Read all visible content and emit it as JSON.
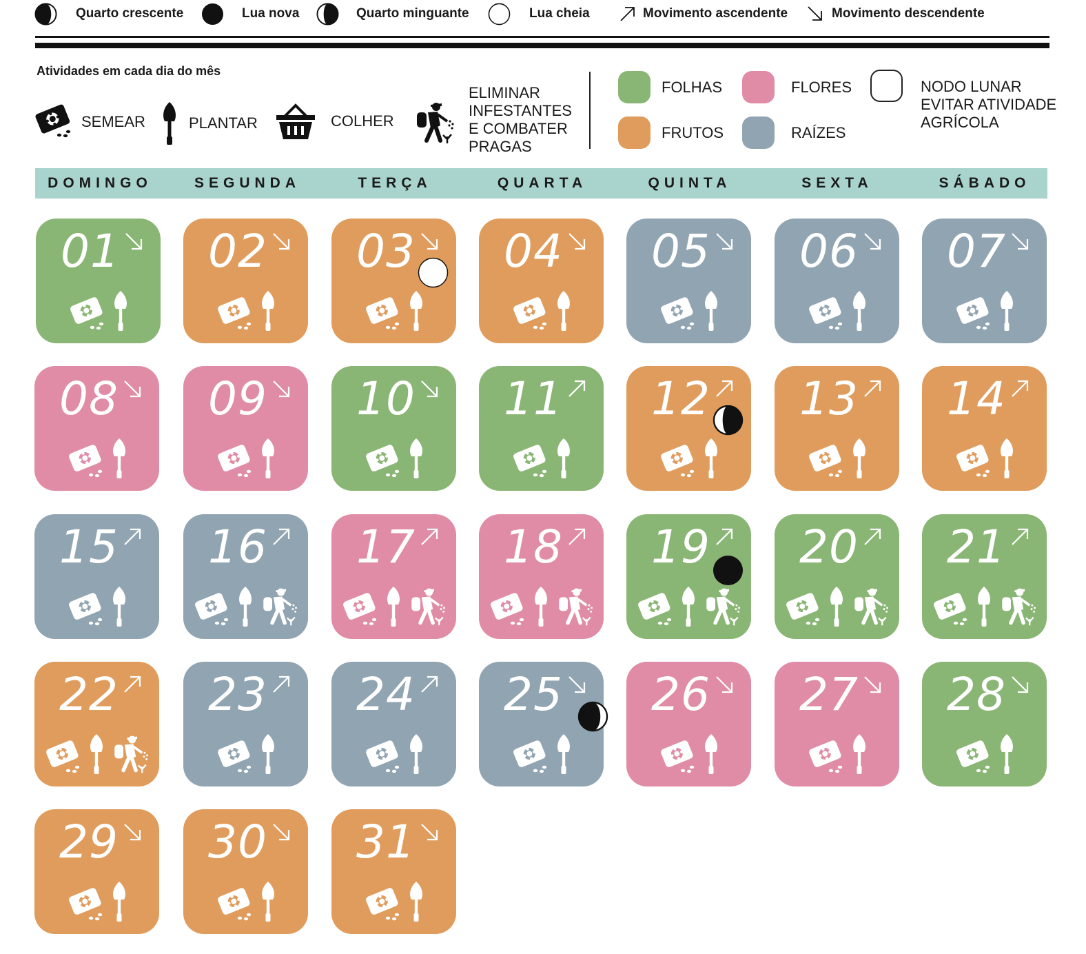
{
  "moon_legend": [
    {
      "icon": "first-quarter-moon",
      "label": "Quarto crescente"
    },
    {
      "icon": "new-moon",
      "label": "Lua nova"
    },
    {
      "icon": "last-quarter-moon",
      "label": "Quarto minguante"
    },
    {
      "icon": "full-moon",
      "label": "Lua cheia"
    },
    {
      "icon": "arrow-up-icon",
      "label": "Movimento ascendente"
    },
    {
      "icon": "arrow-down-icon",
      "label": "Movimento descendente"
    }
  ],
  "activities": {
    "title": "Atividades em cada dia do mês",
    "items": [
      {
        "icon": "seed-packet-icon",
        "label": "SEMEAR"
      },
      {
        "icon": "trowel-icon",
        "label": "PLANTAR"
      },
      {
        "icon": "basket-icon",
        "label": "COLHER"
      },
      {
        "icon": "sprayer-person-icon",
        "label_lines": [
          "ELIMINAR",
          "INFESTANTES",
          "E COMBATER",
          "PRAGAS"
        ]
      }
    ]
  },
  "categories": [
    {
      "key": "folhas",
      "label": "FOLHAS",
      "color": "#89b674"
    },
    {
      "key": "flores",
      "label": "FLORES",
      "color": "#e08ca6"
    },
    {
      "key": "frutos",
      "label": "FRUTOS",
      "color": "#e09c5c"
    },
    {
      "key": "raizes",
      "label": "RAÍZES",
      "color": "#91a4b1"
    }
  ],
  "nodo": {
    "label_lines": [
      "NODO LUNAR",
      "EVITAR ATIVIDADE",
      "AGRÍCOLA"
    ]
  },
  "weekdays": [
    "DOMINGO",
    "SEGUNDA",
    "TERÇA",
    "QUARTA",
    "QUINTA",
    "SEXTA",
    "SÁBADO"
  ],
  "days": [
    {
      "n": "01",
      "cat": "folhas",
      "dir": "down",
      "acts": [
        "semear",
        "plantar"
      ]
    },
    {
      "n": "02",
      "cat": "frutos",
      "dir": "down",
      "acts": [
        "semear",
        "plantar"
      ]
    },
    {
      "n": "03",
      "cat": "frutos",
      "dir": "down",
      "moon": "full",
      "acts": [
        "semear",
        "plantar"
      ]
    },
    {
      "n": "04",
      "cat": "frutos",
      "dir": "down",
      "acts": [
        "semear",
        "plantar"
      ]
    },
    {
      "n": "05",
      "cat": "raizes",
      "dir": "down",
      "acts": [
        "semear",
        "plantar"
      ]
    },
    {
      "n": "06",
      "cat": "raizes",
      "dir": "down",
      "acts": [
        "semear",
        "plantar"
      ]
    },
    {
      "n": "07",
      "cat": "raizes",
      "dir": "down",
      "acts": [
        "semear",
        "plantar"
      ]
    },
    {
      "n": "08",
      "cat": "flores",
      "dir": "down",
      "acts": [
        "semear",
        "plantar"
      ]
    },
    {
      "n": "09",
      "cat": "flores",
      "dir": "down",
      "acts": [
        "semear",
        "plantar"
      ]
    },
    {
      "n": "10",
      "cat": "folhas",
      "dir": "down",
      "acts": [
        "semear",
        "plantar"
      ]
    },
    {
      "n": "11",
      "cat": "folhas",
      "dir": "up",
      "acts": [
        "semear",
        "plantar"
      ]
    },
    {
      "n": "12",
      "cat": "frutos",
      "dir": "up",
      "moon": "last-quarter",
      "acts": [
        "semear",
        "plantar"
      ]
    },
    {
      "n": "13",
      "cat": "frutos",
      "dir": "up",
      "acts": [
        "semear",
        "plantar"
      ]
    },
    {
      "n": "14",
      "cat": "frutos",
      "dir": "up",
      "acts": [
        "semear",
        "plantar"
      ]
    },
    {
      "n": "15",
      "cat": "raizes",
      "dir": "up",
      "acts": [
        "semear",
        "plantar"
      ]
    },
    {
      "n": "16",
      "cat": "raizes",
      "dir": "up",
      "acts": [
        "semear",
        "plantar",
        "pragas"
      ]
    },
    {
      "n": "17",
      "cat": "flores",
      "dir": "up",
      "acts": [
        "semear",
        "plantar",
        "pragas"
      ]
    },
    {
      "n": "18",
      "cat": "flores",
      "dir": "up",
      "acts": [
        "semear",
        "plantar",
        "pragas"
      ]
    },
    {
      "n": "19",
      "cat": "folhas",
      "dir": "up",
      "moon": "new",
      "acts": [
        "semear",
        "plantar",
        "pragas"
      ]
    },
    {
      "n": "20",
      "cat": "folhas",
      "dir": "up",
      "acts": [
        "semear",
        "plantar",
        "pragas"
      ]
    },
    {
      "n": "21",
      "cat": "folhas",
      "dir": "up",
      "acts": [
        "semear",
        "plantar",
        "pragas"
      ]
    },
    {
      "n": "22",
      "cat": "frutos",
      "dir": "up",
      "acts": [
        "semear",
        "plantar",
        "pragas"
      ]
    },
    {
      "n": "23",
      "cat": "raizes",
      "dir": "up",
      "acts": [
        "semear",
        "plantar"
      ]
    },
    {
      "n": "24",
      "cat": "raizes",
      "dir": "up",
      "acts": [
        "semear",
        "plantar"
      ]
    },
    {
      "n": "25",
      "cat": "raizes",
      "dir": "down",
      "moon": "first-quarter",
      "acts": [
        "semear",
        "plantar"
      ]
    },
    {
      "n": "26",
      "cat": "flores",
      "dir": "down",
      "acts": [
        "semear",
        "plantar"
      ]
    },
    {
      "n": "27",
      "cat": "flores",
      "dir": "down",
      "acts": [
        "semear",
        "plantar"
      ]
    },
    {
      "n": "28",
      "cat": "folhas",
      "dir": "down",
      "acts": [
        "semear",
        "plantar"
      ]
    },
    {
      "n": "29",
      "cat": "frutos",
      "dir": "down",
      "acts": [
        "semear",
        "plantar"
      ]
    },
    {
      "n": "30",
      "cat": "frutos",
      "dir": "down",
      "acts": [
        "semear",
        "plantar"
      ]
    },
    {
      "n": "31",
      "cat": "frutos",
      "dir": "down",
      "acts": [
        "semear",
        "plantar"
      ]
    }
  ]
}
